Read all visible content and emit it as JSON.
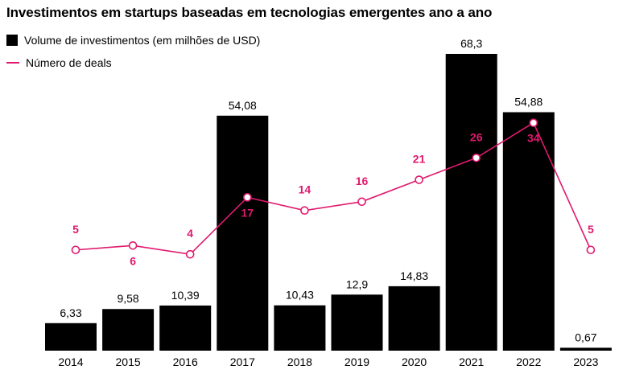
{
  "chart_data": {
    "type": "bar",
    "title": "Investimentos em startups baseadas em tecnologias emergentes ano a ano",
    "categories": [
      "2014",
      "2015",
      "2016",
      "2017",
      "2018",
      "2019",
      "2020",
      "2021",
      "2022",
      "2023"
    ],
    "series": [
      {
        "name": "Volume de investimentos (em milhões de USD)",
        "type": "bar",
        "color": "#000000",
        "values": [
          6.33,
          9.58,
          10.39,
          54.08,
          10.43,
          12.9,
          14.83,
          68.3,
          54.88,
          0.67
        ],
        "labels": [
          "6,33",
          "9,58",
          "10,39",
          "54,08",
          "10,43",
          "12,9",
          "14,83",
          "68,3",
          "54,88",
          "0,67"
        ]
      },
      {
        "name": "Número de deals",
        "type": "line",
        "color": "#e0196e",
        "values": [
          5,
          6,
          4,
          17,
          14,
          16,
          21,
          26,
          34,
          5
        ],
        "labels": [
          "5",
          "6",
          "4",
          "17",
          "14",
          "16",
          "21",
          "26",
          "34",
          "5"
        ]
      }
    ],
    "xlabel": "",
    "ylabel": "",
    "ylim": [
      0,
      70
    ]
  }
}
